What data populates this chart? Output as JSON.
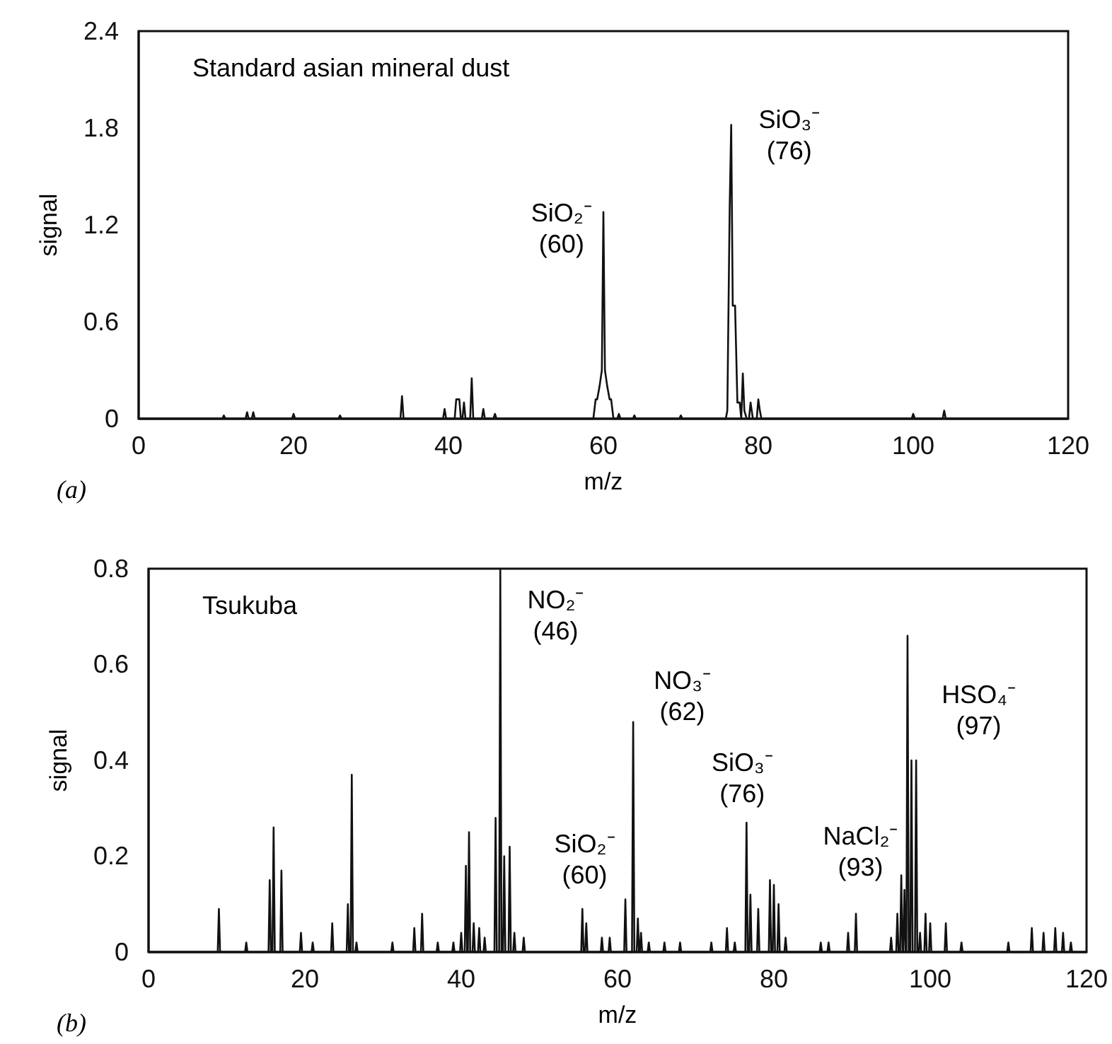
{
  "chart_data": [
    {
      "type": "line",
      "xlabel": "m/z",
      "ylabel": "signal",
      "xlim": [
        0,
        120
      ],
      "ylim": [
        0,
        2.4
      ],
      "xticks": [
        0,
        20,
        40,
        60,
        80,
        100,
        120
      ],
      "yticks": [
        0,
        0.6,
        1.2,
        1.8,
        2.4
      ],
      "series": [
        {
          "color": "#111111",
          "x": [
            0,
            10.8,
            11,
            11.2,
            13.8,
            14,
            14.2,
            14.6,
            14.8,
            15,
            15.2,
            19.8,
            20,
            20.2,
            25.8,
            26,
            26.2,
            33.8,
            34,
            34.2,
            39.3,
            39.5,
            39.7,
            40.8,
            41,
            41.4,
            41.6,
            41.8,
            42,
            42.2,
            42.8,
            43,
            43.2,
            44.3,
            44.5,
            44.7,
            45.8,
            46,
            46.2,
            58.7,
            59,
            59.2,
            59.5,
            59.8,
            60,
            60.2,
            60.5,
            60.8,
            61,
            61.3,
            61.6,
            61.8,
            62,
            62.2,
            63.8,
            64,
            64.2,
            69.8,
            70,
            70.2,
            75.8,
            76,
            76.3,
            76.5,
            76.7,
            77,
            77.3,
            77.6,
            77.8,
            78,
            78.2,
            78.5,
            78.8,
            79,
            79.3,
            79.6,
            79.8,
            80,
            80.2,
            80.4,
            99.8,
            100,
            100.2,
            103.8,
            104,
            104.2,
            120
          ],
          "values": [
            0,
            0,
            0.02,
            0,
            0,
            0.04,
            0,
            0,
            0.04,
            0,
            0,
            0,
            0.03,
            0,
            0,
            0.02,
            0,
            0,
            0.14,
            0,
            0,
            0.06,
            0,
            0,
            0.12,
            0.12,
            0,
            0,
            0.1,
            0,
            0,
            0.25,
            0,
            0,
            0.06,
            0,
            0,
            0.03,
            0,
            0,
            0.12,
            0.12,
            0.2,
            0.3,
            1.28,
            0.3,
            0.2,
            0.12,
            0.12,
            0,
            0,
            0,
            0.03,
            0,
            0,
            0.02,
            0,
            0,
            0.02,
            0,
            0,
            0.05,
            1.3,
            1.82,
            0.7,
            0.7,
            0.1,
            0.1,
            0,
            0.28,
            0.05,
            0,
            0,
            0.1,
            0,
            0,
            0,
            0.12,
            0.05,
            0,
            0,
            0.03,
            0,
            0,
            0.05,
            0,
            0
          ]
        }
      ],
      "annotations": [
        "Standard asian mineral dust",
        "(a)",
        "SiO₂⁻\n(60)",
        "SiO₃⁻\n(76)"
      ]
    },
    {
      "type": "line",
      "xlabel": "m/z",
      "ylabel": "signal",
      "xlim": [
        0,
        120
      ],
      "ylim": [
        0,
        0.8
      ],
      "xticks": [
        0,
        20,
        40,
        60,
        80,
        100,
        120
      ],
      "yticks": [
        0,
        0.2,
        0.4,
        0.6,
        0.8
      ],
      "series": [
        {
          "color": "#111111",
          "x": [
            0,
            8.85,
            9,
            9.15,
            12.35,
            12.5,
            12.65,
            15.35,
            15.5,
            15.65,
            15.85,
            16,
            16.15,
            16.85,
            17,
            17.15,
            19.35,
            19.5,
            19.65,
            20.85,
            21,
            21.15,
            23.35,
            23.5,
            23.65,
            25.35,
            25.5,
            25.65,
            25.85,
            26,
            26.15,
            26.45,
            26.6,
            26.75,
            31.05,
            31.2,
            31.35,
            33.85,
            34,
            34.15,
            34.85,
            35,
            35.15,
            36.85,
            37,
            37.15,
            38.85,
            39,
            39.15,
            39.85,
            40,
            40.15,
            40.45,
            40.6,
            40.75,
            40.85,
            41,
            41.15,
            41.45,
            41.6,
            41.75,
            42.15,
            42.3,
            42.45,
            42.85,
            43,
            43.15,
            44.25,
            44.4,
            44.55,
            44.85,
            45,
            45.15,
            45.35,
            45.5,
            45.65,
            46.05,
            46.2,
            46.35,
            46.65,
            46.8,
            46.95,
            47.85,
            48,
            48.15,
            55.35,
            55.5,
            55.65,
            55.85,
            56,
            56.15,
            57.85,
            58,
            58.15,
            58.85,
            59,
            59.15,
            60.85,
            61,
            61.15,
            61.85,
            62,
            62.15,
            62.45,
            62.6,
            62.75,
            62.85,
            63,
            63.15,
            63.85,
            64,
            64.15,
            65.85,
            66,
            66.15,
            67.85,
            68,
            68.15,
            71.85,
            72,
            72.15,
            73.85,
            74,
            74.15,
            74.85,
            75,
            75.15,
            76.35,
            76.5,
            76.65,
            76.85,
            77,
            77.15,
            77.85,
            78,
            78.15,
            79.35,
            79.5,
            79.65,
            79.85,
            80,
            80.15,
            80.45,
            80.6,
            80.75,
            81.35,
            81.5,
            81.65,
            85.85,
            86,
            86.15,
            86.85,
            87,
            87.15,
            89.35,
            89.5,
            89.65,
            90.35,
            90.5,
            90.65,
            94.85,
            95,
            95.15,
            95.65,
            95.8,
            95.95,
            96.15,
            96.3,
            96.45,
            96.55,
            96.7,
            96.85,
            96.95,
            97.1,
            97.25,
            97.45,
            97.6,
            97.75,
            98.05,
            98.2,
            98.35,
            98.55,
            98.7,
            98.85,
            99.25,
            99.4,
            99.55,
            99.85,
            100,
            100.15,
            101.85,
            102,
            102.15,
            103.85,
            104,
            104.15,
            109.85,
            110,
            110.15,
            112.85,
            113,
            113.15,
            114.35,
            114.5,
            114.65,
            115.85,
            116,
            116.15,
            116.85,
            117,
            117.15,
            117.85,
            118,
            118.15,
            120
          ],
          "values": [
            0,
            0,
            0.09,
            0,
            0,
            0.02,
            0,
            0,
            0.15,
            0,
            0,
            0.26,
            0,
            0,
            0.17,
            0,
            0,
            0.04,
            0,
            0,
            0.02,
            0,
            0,
            0.06,
            0,
            0,
            0.1,
            0,
            0,
            0.37,
            0,
            0,
            0.02,
            0,
            0,
            0.02,
            0,
            0,
            0.05,
            0,
            0,
            0.08,
            0,
            0,
            0.02,
            0,
            0,
            0.02,
            0,
            0,
            0.04,
            0,
            0,
            0.18,
            0,
            0,
            0.25,
            0,
            0,
            0.06,
            0,
            0,
            0.05,
            0,
            0,
            0.03,
            0,
            0,
            0.28,
            0,
            0,
            0.8,
            0,
            0,
            0.2,
            0,
            0,
            0.22,
            0,
            0,
            0.04,
            0,
            0,
            0.03,
            0,
            0,
            0.09,
            0,
            0,
            0.06,
            0,
            0,
            0.03,
            0,
            0,
            0.03,
            0,
            0,
            0.11,
            0,
            0,
            0.48,
            0,
            0,
            0.07,
            0,
            0,
            0.04,
            0,
            0,
            0.02,
            0,
            0,
            0.02,
            0,
            0,
            0.02,
            0,
            0,
            0.02,
            0,
            0,
            0.05,
            0,
            0,
            0.02,
            0,
            0,
            0.27,
            0,
            0,
            0.12,
            0,
            0,
            0.09,
            0,
            0,
            0.15,
            0,
            0,
            0.14,
            0,
            0,
            0.1,
            0,
            0,
            0.03,
            0,
            0,
            0.02,
            0,
            0,
            0.02,
            0,
            0,
            0.04,
            0,
            0,
            0.08,
            0,
            0,
            0.03,
            0,
            0,
            0.08,
            0,
            0,
            0.16,
            0,
            0,
            0.13,
            0,
            0,
            0.66,
            0,
            0,
            0.4,
            0,
            0,
            0.4,
            0,
            0,
            0.04,
            0,
            0,
            0.08,
            0,
            0,
            0.06,
            0,
            0,
            0.06,
            0,
            0,
            0.02,
            0,
            0,
            0.02,
            0,
            0,
            0.05,
            0,
            0,
            0.04,
            0,
            0,
            0.05,
            0,
            0,
            0.04,
            0,
            0,
            0.02,
            0,
            0
          ]
        }
      ],
      "annotations": [
        "Tsukuba",
        "(b)",
        "NO₂⁻\n(46)",
        "NO₃⁻\n(62)",
        "SiO₂⁻\n(60)",
        "SiO₃⁻\n(76)",
        "NaCl₂⁻\n(93)",
        "HSO₄⁻\n(97)"
      ]
    }
  ]
}
